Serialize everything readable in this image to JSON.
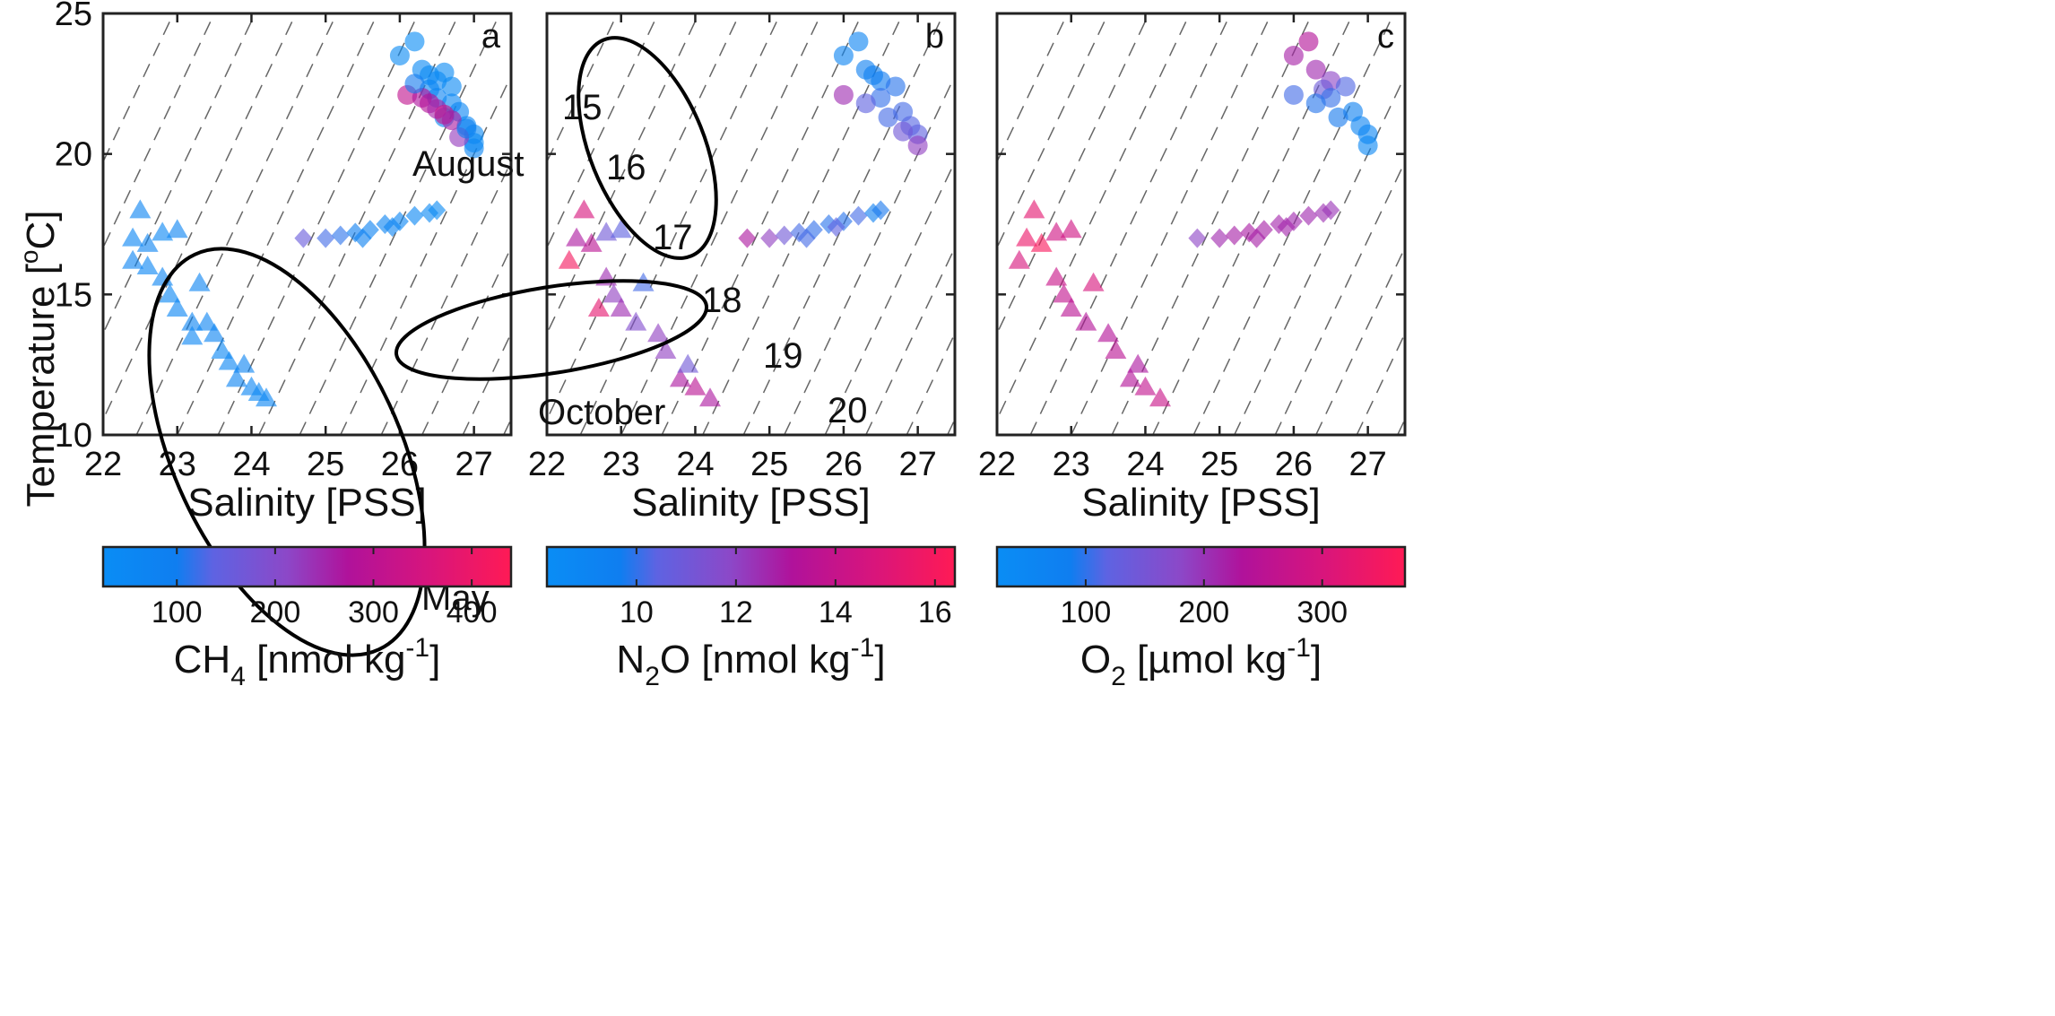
{
  "figure": {
    "axes": {
      "xlabel": "Salinity [PSS]",
      "ylabel_main": "Temperature [",
      "ylabel_sup": "o",
      "ylabel_tail": "C]",
      "xlim": [
        22,
        27.5
      ],
      "ylim": [
        10,
        25
      ],
      "xticks": [
        "22",
        "23",
        "24",
        "25",
        "26",
        "27"
      ],
      "yticks": [
        "10",
        "15",
        "20",
        "25"
      ]
    },
    "isopycnals": [
      15,
      16,
      17,
      18,
      19,
      20
    ],
    "groups": [
      {
        "label": "August",
        "marker": "circle"
      },
      {
        "label": "October",
        "marker": "diamond"
      },
      {
        "label": "May",
        "marker": "triangle"
      }
    ],
    "colormap": [
      "#0a8df5",
      "#0f7ef0",
      "#5e63e2",
      "#8c48c8",
      "#b0129b",
      "#d8157c",
      "#ff1a55"
    ]
  },
  "chart_data": [
    {
      "type": "scatter",
      "panel": "a",
      "xlabel": "Salinity [PSS]",
      "ylabel": "Temperature [oC]",
      "xlim": [
        22,
        27.5
      ],
      "ylim": [
        10,
        25
      ],
      "color_variable": "CH4",
      "colorbar": {
        "label_pre": "CH",
        "label_sub": "4",
        "label_post": " [nmol kg",
        "label_sup": "-1",
        "label_end": "]",
        "range": [
          25,
          440
        ],
        "ticks": [
          "100",
          "200",
          "300",
          "400"
        ],
        "tick_values": [
          100,
          200,
          300,
          400
        ]
      },
      "series": [
        {
          "name": "August",
          "marker": "circle",
          "points": [
            [
              26.2,
              24.0,
              30
            ],
            [
              26.0,
              23.5,
              40
            ],
            [
              26.3,
              23.0,
              45
            ],
            [
              26.4,
              22.8,
              35
            ],
            [
              26.5,
              22.6,
              50
            ],
            [
              26.6,
              22.9,
              40
            ],
            [
              26.7,
              22.4,
              45
            ],
            [
              26.4,
              22.3,
              55
            ],
            [
              26.5,
              22.0,
              60
            ],
            [
              26.7,
              21.8,
              50
            ],
            [
              26.8,
              21.5,
              55
            ],
            [
              26.6,
              21.3,
              40
            ],
            [
              26.9,
              21.0,
              50
            ],
            [
              27.0,
              20.7,
              45
            ],
            [
              27.0,
              20.4,
              40
            ],
            [
              27.0,
              20.2,
              55
            ],
            [
              26.1,
              22.1,
              330
            ],
            [
              26.3,
              22.0,
              300
            ],
            [
              26.4,
              21.8,
              310
            ],
            [
              26.5,
              21.6,
              280
            ],
            [
              26.6,
              21.4,
              340
            ],
            [
              26.7,
              21.2,
              290
            ],
            [
              26.8,
              20.6,
              250
            ],
            [
              26.2,
              22.5,
              100
            ],
            [
              26.9,
              20.9,
              80
            ]
          ]
        },
        {
          "name": "October",
          "marker": "diamond",
          "points": [
            [
              24.7,
              17.0,
              180
            ],
            [
              25.0,
              17.0,
              140
            ],
            [
              25.2,
              17.1,
              120
            ],
            [
              25.4,
              17.2,
              90
            ],
            [
              25.6,
              17.3,
              70
            ],
            [
              25.8,
              17.5,
              60
            ],
            [
              26.0,
              17.6,
              55
            ],
            [
              26.2,
              17.8,
              50
            ],
            [
              26.4,
              17.9,
              45
            ],
            [
              26.5,
              18.0,
              40
            ],
            [
              25.5,
              17.0,
              80
            ],
            [
              25.9,
              17.4,
              60
            ]
          ]
        },
        {
          "name": "May",
          "marker": "triangle",
          "points": [
            [
              22.5,
              18.0,
              60
            ],
            [
              22.4,
              17.0,
              55
            ],
            [
              22.6,
              16.8,
              60
            ],
            [
              22.8,
              17.2,
              50
            ],
            [
              23.0,
              17.3,
              65
            ],
            [
              22.4,
              16.2,
              60
            ],
            [
              22.6,
              16.0,
              55
            ],
            [
              22.8,
              15.6,
              60
            ],
            [
              22.9,
              15.0,
              50
            ],
            [
              23.3,
              15.4,
              60
            ],
            [
              23.0,
              14.5,
              55
            ],
            [
              23.2,
              14.0,
              65
            ],
            [
              23.4,
              14.0,
              60
            ],
            [
              23.5,
              13.6,
              60
            ],
            [
              23.2,
              13.5,
              55
            ],
            [
              23.6,
              13.0,
              50
            ],
            [
              23.7,
              12.6,
              55
            ],
            [
              23.9,
              12.5,
              60
            ],
            [
              23.8,
              12.0,
              60
            ],
            [
              24.0,
              11.7,
              55
            ],
            [
              24.1,
              11.5,
              50
            ],
            [
              24.2,
              11.3,
              55
            ]
          ]
        }
      ]
    },
    {
      "type": "scatter",
      "panel": "b",
      "xlabel": "Salinity [PSS]",
      "xlim": [
        22,
        27.5
      ],
      "ylim": [
        10,
        25
      ],
      "color_variable": "N2O",
      "colorbar": {
        "label_pre": "N",
        "label_sub": "2",
        "label_post": "O [nmol kg",
        "label_sup": "-1",
        "label_end": "]",
        "range": [
          8.2,
          16.4
        ],
        "ticks": [
          "10",
          "12",
          "14",
          "16"
        ],
        "tick_values": [
          10,
          12,
          14,
          16
        ]
      },
      "series": [
        {
          "name": "August",
          "marker": "circle",
          "points": [
            [
              26.2,
              24.0,
              9.0
            ],
            [
              26.0,
              23.5,
              9.0
            ],
            [
              26.3,
              23.0,
              9.4
            ],
            [
              26.5,
              22.6,
              9.6
            ],
            [
              26.7,
              22.4,
              10.0
            ],
            [
              26.5,
              22.0,
              10.2
            ],
            [
              26.8,
              21.5,
              10.5
            ],
            [
              26.9,
              21.0,
              10.8
            ],
            [
              27.0,
              20.7,
              11.0
            ],
            [
              27.0,
              20.3,
              12.5
            ],
            [
              26.0,
              22.1,
              13.0
            ],
            [
              26.3,
              21.8,
              11.0
            ],
            [
              26.6,
              21.3,
              10.5
            ],
            [
              26.8,
              20.8,
              11.5
            ],
            [
              26.4,
              22.8,
              9.5
            ]
          ]
        },
        {
          "name": "October",
          "marker": "diamond",
          "points": [
            [
              24.7,
              17.0,
              13.5
            ],
            [
              25.0,
              17.0,
              12.5
            ],
            [
              25.2,
              17.1,
              11.5
            ],
            [
              25.4,
              17.2,
              10.5
            ],
            [
              25.6,
              17.3,
              10.2
            ],
            [
              25.8,
              17.5,
              10.0
            ],
            [
              26.0,
              17.6,
              10.0
            ],
            [
              26.2,
              17.8,
              10.5
            ],
            [
              26.4,
              17.9,
              9.5
            ],
            [
              26.5,
              18.0,
              9.8
            ],
            [
              25.5,
              17.0,
              10.5
            ],
            [
              25.9,
              17.4,
              11.0
            ]
          ]
        },
        {
          "name": "May",
          "marker": "triangle",
          "points": [
            [
              22.5,
              18.0,
              15.0
            ],
            [
              22.4,
              17.0,
              13.5
            ],
            [
              22.3,
              16.2,
              16.0
            ],
            [
              22.6,
              16.8,
              14.0
            ],
            [
              22.8,
              17.2,
              11.5
            ],
            [
              23.0,
              17.3,
              11.0
            ],
            [
              22.8,
              15.6,
              13.0
            ],
            [
              22.9,
              15.0,
              12.5
            ],
            [
              23.3,
              15.4,
              10.5
            ],
            [
              22.7,
              14.5,
              15.5
            ],
            [
              23.0,
              14.5,
              13.0
            ],
            [
              23.2,
              14.0,
              12.0
            ],
            [
              23.5,
              13.6,
              12.5
            ],
            [
              23.6,
              13.0,
              12.5
            ],
            [
              23.8,
              12.0,
              13.5
            ],
            [
              24.0,
              11.7,
              14.0
            ],
            [
              24.2,
              11.3,
              13.5
            ],
            [
              23.9,
              12.5,
              11.5
            ]
          ]
        }
      ]
    },
    {
      "type": "scatter",
      "panel": "c",
      "xlabel": "Salinity [PSS]",
      "xlim": [
        22,
        27.5
      ],
      "ylim": [
        10,
        25
      ],
      "color_variable": "O2",
      "colorbar": {
        "label_pre": "O",
        "label_sub": "2",
        "label_post": " [µmol kg",
        "label_sup": "-1",
        "label_end": "]",
        "range": [
          25,
          370
        ],
        "ticks": [
          "100",
          "200",
          "300"
        ],
        "tick_values": [
          100,
          200,
          300
        ]
      },
      "series": [
        {
          "name": "August",
          "marker": "circle",
          "points": [
            [
              26.2,
              24.0,
              260
            ],
            [
              26.0,
              23.5,
              240
            ],
            [
              26.3,
              23.0,
              230
            ],
            [
              26.5,
              22.6,
              200
            ],
            [
              26.4,
              22.3,
              160
            ],
            [
              26.7,
              22.4,
              130
            ],
            [
              26.0,
              22.1,
              120
            ],
            [
              26.5,
              22.0,
              110
            ],
            [
              26.8,
              21.5,
              70
            ],
            [
              26.9,
              21.0,
              60
            ],
            [
              27.0,
              20.7,
              50
            ],
            [
              27.0,
              20.3,
              45
            ],
            [
              26.6,
              21.3,
              90
            ],
            [
              26.3,
              21.8,
              100
            ]
          ]
        },
        {
          "name": "October",
          "marker": "diamond",
          "points": [
            [
              24.7,
              17.0,
              200
            ],
            [
              25.0,
              17.0,
              230
            ],
            [
              25.2,
              17.1,
              240
            ],
            [
              25.4,
              17.2,
              245
            ],
            [
              25.6,
              17.3,
              240
            ],
            [
              25.8,
              17.5,
              235
            ],
            [
              26.0,
              17.6,
              230
            ],
            [
              26.2,
              17.8,
              230
            ],
            [
              26.4,
              17.9,
              225
            ],
            [
              26.5,
              18.0,
              220
            ],
            [
              25.5,
              17.0,
              240
            ],
            [
              25.9,
              17.4,
              235
            ]
          ]
        },
        {
          "name": "May",
          "marker": "triangle",
          "points": [
            [
              22.5,
              18.0,
              330
            ],
            [
              22.4,
              17.0,
              340
            ],
            [
              22.3,
              16.2,
              310
            ],
            [
              22.6,
              16.8,
              360
            ],
            [
              22.8,
              17.2,
              300
            ],
            [
              23.0,
              17.3,
              300
            ],
            [
              22.8,
              15.6,
              290
            ],
            [
              22.9,
              15.0,
              280
            ],
            [
              23.3,
              15.4,
              310
            ],
            [
              23.0,
              14.5,
              270
            ],
            [
              23.2,
              14.0,
              260
            ],
            [
              23.5,
              13.6,
              260
            ],
            [
              23.6,
              13.0,
              270
            ],
            [
              23.8,
              12.0,
              260
            ],
            [
              24.0,
              11.7,
              280
            ],
            [
              24.2,
              11.3,
              290
            ],
            [
              23.9,
              12.5,
              250
            ]
          ]
        }
      ]
    }
  ]
}
